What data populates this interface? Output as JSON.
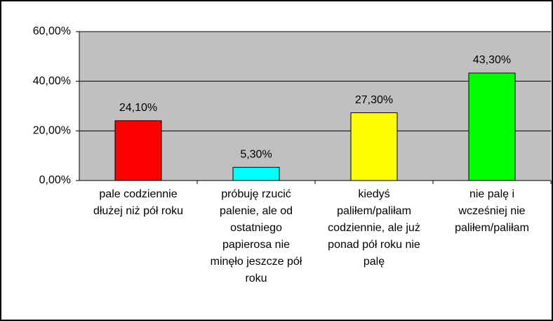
{
  "chart_data": {
    "type": "bar",
    "categories": [
      "pale codziennie dłużej niż pół roku",
      "próbuję rzucić palenie, ale od ostatniego papierosa nie minęło jeszcze pół roku",
      "kiedyś paliłem/paliłam codziennie, ale już ponad pół roku nie palę",
      "nie palę i wcześniej nie paliłem/paliłam"
    ],
    "values": [
      24.1,
      5.3,
      27.3,
      43.3
    ],
    "value_labels": [
      "24,10%",
      "5,30%",
      "27,30%",
      "43,30%"
    ],
    "colors": [
      "#ff0000",
      "#00ffff",
      "#ffff00",
      "#00ff00"
    ],
    "ylim": [
      0,
      60
    ],
    "yticks": [
      {
        "value": 0,
        "label": "0,00%"
      },
      {
        "value": 20,
        "label": "20,00%"
      },
      {
        "value": 40,
        "label": "40,00%"
      },
      {
        "value": 60,
        "label": "60,00%"
      }
    ],
    "grid": true
  }
}
